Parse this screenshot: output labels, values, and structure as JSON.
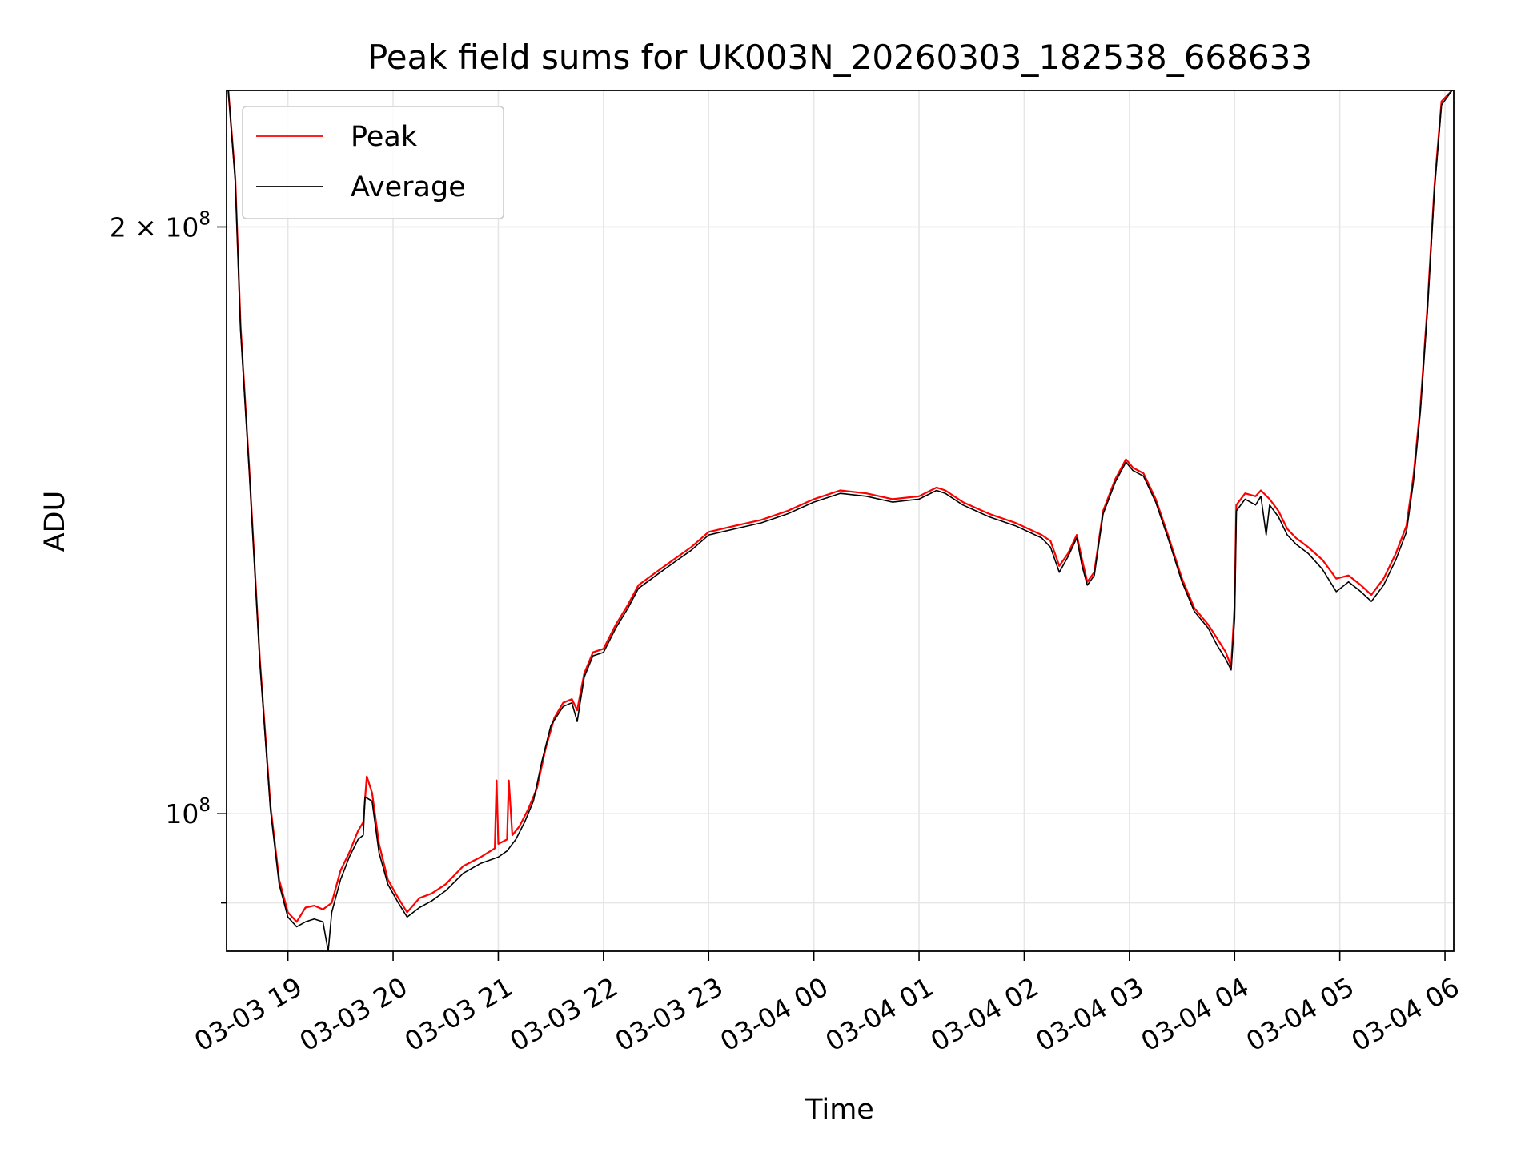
{
  "chart_data": {
    "type": "line",
    "title": "Peak field sums for UK003N_20260303_182538_668633",
    "xlabel": "Time",
    "ylabel": "ADU",
    "y_scale": "log",
    "grid": true,
    "legend_position": "upper-left",
    "x_range": [
      "2026-03-03 18:25",
      "2026-03-04 06:05"
    ],
    "y_range": [
      85000000,
      235000000
    ],
    "x_ticks": [
      {
        "value": "2026-03-03 19:00",
        "label": "03-03 19"
      },
      {
        "value": "2026-03-03 20:00",
        "label": "03-03 20"
      },
      {
        "value": "2026-03-03 21:00",
        "label": "03-03 21"
      },
      {
        "value": "2026-03-03 22:00",
        "label": "03-03 22"
      },
      {
        "value": "2026-03-03 23:00",
        "label": "03-03 23"
      },
      {
        "value": "2026-03-04 00:00",
        "label": "03-04 00"
      },
      {
        "value": "2026-03-04 01:00",
        "label": "03-04 01"
      },
      {
        "value": "2026-03-04 02:00",
        "label": "03-04 02"
      },
      {
        "value": "2026-03-04 03:00",
        "label": "03-04 03"
      },
      {
        "value": "2026-03-04 04:00",
        "label": "03-04 04"
      },
      {
        "value": "2026-03-04 05:00",
        "label": "03-04 05"
      },
      {
        "value": "2026-03-04 06:00",
        "label": "03-04 06"
      }
    ],
    "y_ticks_major": [
      {
        "value": 100000000,
        "base": "10",
        "exp": "8"
      },
      {
        "value": 200000000,
        "base": "2 × 10",
        "exp": "8"
      }
    ],
    "y_ticks_minor": [
      90000000
    ],
    "colors": {
      "peak": "#ff0000",
      "average": "#000000"
    },
    "series": [
      {
        "name": "Peak",
        "color": "#ff0000",
        "points": [
          [
            "2026-03-03 18:26",
            235000000
          ],
          [
            "2026-03-03 18:30",
            212000000
          ],
          [
            "2026-03-03 18:33",
            178000000
          ],
          [
            "2026-03-03 18:38",
            150000000
          ],
          [
            "2026-03-03 18:44",
            120000000
          ],
          [
            "2026-03-03 18:50",
            101000000
          ],
          [
            "2026-03-03 18:55",
            92500000
          ],
          [
            "2026-03-03 19:00",
            89000000
          ],
          [
            "2026-03-03 19:05",
            88000000
          ],
          [
            "2026-03-03 19:10",
            89500000
          ],
          [
            "2026-03-03 19:15",
            89700000
          ],
          [
            "2026-03-03 19:20",
            89300000
          ],
          [
            "2026-03-03 19:25",
            90000000
          ],
          [
            "2026-03-03 19:30",
            93500000
          ],
          [
            "2026-03-03 19:35",
            95500000
          ],
          [
            "2026-03-03 19:40",
            98000000
          ],
          [
            "2026-03-03 19:43",
            99000000
          ],
          [
            "2026-03-03 19:45",
            104500000
          ],
          [
            "2026-03-03 19:48",
            102500000
          ],
          [
            "2026-03-03 19:52",
            96500000
          ],
          [
            "2026-03-03 19:57",
            92500000
          ],
          [
            "2026-03-03 20:03",
            90500000
          ],
          [
            "2026-03-03 20:08",
            89000000
          ],
          [
            "2026-03-03 20:15",
            90500000
          ],
          [
            "2026-03-03 20:22",
            91000000
          ],
          [
            "2026-03-03 20:30",
            92000000
          ],
          [
            "2026-03-03 20:40",
            94000000
          ],
          [
            "2026-03-03 20:50",
            95000000
          ],
          [
            "2026-03-03 20:58",
            96000000
          ],
          [
            "2026-03-03 20:59",
            104000000
          ],
          [
            "2026-03-03 21:00",
            96500000
          ],
          [
            "2026-03-03 21:05",
            97000000
          ],
          [
            "2026-03-03 21:06",
            104000000
          ],
          [
            "2026-03-03 21:08",
            97500000
          ],
          [
            "2026-03-03 21:12",
            98500000
          ],
          [
            "2026-03-03 21:17",
            100500000
          ],
          [
            "2026-03-03 21:22",
            103000000
          ],
          [
            "2026-03-03 21:27",
            108000000
          ],
          [
            "2026-03-03 21:32",
            112000000
          ],
          [
            "2026-03-03 21:37",
            114000000
          ],
          [
            "2026-03-03 21:42",
            114500000
          ],
          [
            "2026-03-03 21:45",
            113000000
          ],
          [
            "2026-03-03 21:49",
            118000000
          ],
          [
            "2026-03-03 21:54",
            121000000
          ],
          [
            "2026-03-03 22:00",
            121500000
          ],
          [
            "2026-03-03 22:07",
            125000000
          ],
          [
            "2026-03-03 22:14",
            128000000
          ],
          [
            "2026-03-03 22:20",
            131000000
          ],
          [
            "2026-03-03 22:30",
            133000000
          ],
          [
            "2026-03-03 22:40",
            135000000
          ],
          [
            "2026-03-03 22:50",
            137000000
          ],
          [
            "2026-03-03 23:00",
            139500000
          ],
          [
            "2026-03-03 23:15",
            140500000
          ],
          [
            "2026-03-03 23:30",
            141500000
          ],
          [
            "2026-03-03 23:45",
            143000000
          ],
          [
            "2026-03-04 00:00",
            145000000
          ],
          [
            "2026-03-04 00:15",
            146500000
          ],
          [
            "2026-03-04 00:30",
            146000000
          ],
          [
            "2026-03-04 00:45",
            145000000
          ],
          [
            "2026-03-04 01:00",
            145500000
          ],
          [
            "2026-03-04 01:10",
            147000000
          ],
          [
            "2026-03-04 01:15",
            146500000
          ],
          [
            "2026-03-04 01:25",
            144500000
          ],
          [
            "2026-03-04 01:40",
            142500000
          ],
          [
            "2026-03-04 01:55",
            141000000
          ],
          [
            "2026-03-04 02:10",
            139000000
          ],
          [
            "2026-03-04 02:15",
            138000000
          ],
          [
            "2026-03-04 02:20",
            134000000
          ],
          [
            "2026-03-04 02:25",
            136000000
          ],
          [
            "2026-03-04 02:30",
            139000000
          ],
          [
            "2026-03-04 02:33",
            135000000
          ],
          [
            "2026-03-04 02:36",
            131500000
          ],
          [
            "2026-03-04 02:40",
            133000000
          ],
          [
            "2026-03-04 02:45",
            143000000
          ],
          [
            "2026-03-04 02:52",
            148500000
          ],
          [
            "2026-03-04 02:58",
            152000000
          ],
          [
            "2026-03-04 03:02",
            150500000
          ],
          [
            "2026-03-04 03:08",
            149500000
          ],
          [
            "2026-03-04 03:15",
            145000000
          ],
          [
            "2026-03-04 03:22",
            139000000
          ],
          [
            "2026-03-04 03:30",
            132000000
          ],
          [
            "2026-03-04 03:37",
            127500000
          ],
          [
            "2026-03-04 03:45",
            125000000
          ],
          [
            "2026-03-04 03:50",
            123000000
          ],
          [
            "2026-03-04 03:55",
            121000000
          ],
          [
            "2026-03-04 03:58",
            119000000
          ],
          [
            "2026-03-04 04:00",
            128000000
          ],
          [
            "2026-03-04 04:01",
            144000000
          ],
          [
            "2026-03-04 04:06",
            146000000
          ],
          [
            "2026-03-04 04:12",
            145500000
          ],
          [
            "2026-03-04 04:15",
            146500000
          ],
          [
            "2026-03-04 04:20",
            145000000
          ],
          [
            "2026-03-04 04:25",
            143000000
          ],
          [
            "2026-03-04 04:30",
            140000000
          ],
          [
            "2026-03-04 04:35",
            138500000
          ],
          [
            "2026-03-04 04:42",
            137000000
          ],
          [
            "2026-03-04 04:50",
            135000000
          ],
          [
            "2026-03-04 04:58",
            132000000
          ],
          [
            "2026-03-04 05:05",
            132500000
          ],
          [
            "2026-03-04 05:12",
            131000000
          ],
          [
            "2026-03-04 05:18",
            129500000
          ],
          [
            "2026-03-04 05:25",
            132000000
          ],
          [
            "2026-03-04 05:32",
            136000000
          ],
          [
            "2026-03-04 05:38",
            140500000
          ],
          [
            "2026-03-04 05:42",
            149000000
          ],
          [
            "2026-03-04 05:46",
            162000000
          ],
          [
            "2026-03-04 05:50",
            182000000
          ],
          [
            "2026-03-04 05:54",
            210000000
          ],
          [
            "2026-03-04 05:58",
            232000000
          ],
          [
            "2026-03-04 06:04",
            235000000
          ]
        ]
      },
      {
        "name": "Average",
        "color": "#000000",
        "points": [
          [
            "2026-03-03 18:26",
            235000000
          ],
          [
            "2026-03-03 18:30",
            211000000
          ],
          [
            "2026-03-03 18:33",
            177000000
          ],
          [
            "2026-03-03 18:38",
            149500000
          ],
          [
            "2026-03-03 18:44",
            119500000
          ],
          [
            "2026-03-03 18:50",
            100500000
          ],
          [
            "2026-03-03 18:55",
            92000000
          ],
          [
            "2026-03-03 19:00",
            88500000
          ],
          [
            "2026-03-03 19:05",
            87500000
          ],
          [
            "2026-03-03 19:10",
            88000000
          ],
          [
            "2026-03-03 19:15",
            88300000
          ],
          [
            "2026-03-03 19:20",
            88000000
          ],
          [
            "2026-03-03 19:23",
            85000000
          ],
          [
            "2026-03-03 19:25",
            89000000
          ],
          [
            "2026-03-03 19:30",
            92500000
          ],
          [
            "2026-03-03 19:35",
            95000000
          ],
          [
            "2026-03-03 19:40",
            97000000
          ],
          [
            "2026-03-03 19:43",
            97500000
          ],
          [
            "2026-03-03 19:44",
            102000000
          ],
          [
            "2026-03-03 19:48",
            101500000
          ],
          [
            "2026-03-03 19:52",
            95500000
          ],
          [
            "2026-03-03 19:57",
            92000000
          ],
          [
            "2026-03-03 20:03",
            90000000
          ],
          [
            "2026-03-03 20:08",
            88500000
          ],
          [
            "2026-03-03 20:15",
            89500000
          ],
          [
            "2026-03-03 20:22",
            90200000
          ],
          [
            "2026-03-03 20:30",
            91300000
          ],
          [
            "2026-03-03 20:40",
            93200000
          ],
          [
            "2026-03-03 20:50",
            94300000
          ],
          [
            "2026-03-03 21:00",
            95000000
          ],
          [
            "2026-03-03 21:05",
            95700000
          ],
          [
            "2026-03-03 21:10",
            97000000
          ],
          [
            "2026-03-03 21:15",
            99000000
          ],
          [
            "2026-03-03 21:20",
            101500000
          ],
          [
            "2026-03-03 21:25",
            106500000
          ],
          [
            "2026-03-03 21:30",
            111000000
          ],
          [
            "2026-03-03 21:37",
            113500000
          ],
          [
            "2026-03-03 21:42",
            114000000
          ],
          [
            "2026-03-03 21:45",
            111500000
          ],
          [
            "2026-03-03 21:49",
            117500000
          ],
          [
            "2026-03-03 21:54",
            120500000
          ],
          [
            "2026-03-03 22:00",
            121000000
          ],
          [
            "2026-03-03 22:07",
            124500000
          ],
          [
            "2026-03-03 22:14",
            127500000
          ],
          [
            "2026-03-03 22:20",
            130500000
          ],
          [
            "2026-03-03 22:30",
            132500000
          ],
          [
            "2026-03-03 22:40",
            134500000
          ],
          [
            "2026-03-03 22:50",
            136500000
          ],
          [
            "2026-03-03 23:00",
            139000000
          ],
          [
            "2026-03-03 23:15",
            140000000
          ],
          [
            "2026-03-03 23:30",
            141000000
          ],
          [
            "2026-03-03 23:45",
            142500000
          ],
          [
            "2026-03-04 00:00",
            144500000
          ],
          [
            "2026-03-04 00:15",
            146000000
          ],
          [
            "2026-03-04 00:30",
            145500000
          ],
          [
            "2026-03-04 00:45",
            144500000
          ],
          [
            "2026-03-04 01:00",
            145000000
          ],
          [
            "2026-03-04 01:10",
            146500000
          ],
          [
            "2026-03-04 01:15",
            146000000
          ],
          [
            "2026-03-04 01:25",
            144000000
          ],
          [
            "2026-03-04 01:40",
            142000000
          ],
          [
            "2026-03-04 01:55",
            140500000
          ],
          [
            "2026-03-04 02:10",
            138500000
          ],
          [
            "2026-03-04 02:15",
            137000000
          ],
          [
            "2026-03-04 02:20",
            133000000
          ],
          [
            "2026-03-04 02:25",
            135500000
          ],
          [
            "2026-03-04 02:30",
            138500000
          ],
          [
            "2026-03-04 02:33",
            134000000
          ],
          [
            "2026-03-04 02:36",
            131000000
          ],
          [
            "2026-03-04 02:40",
            132500000
          ],
          [
            "2026-03-04 02:45",
            142500000
          ],
          [
            "2026-03-04 02:52",
            148000000
          ],
          [
            "2026-03-04 02:58",
            151500000
          ],
          [
            "2026-03-04 03:02",
            150000000
          ],
          [
            "2026-03-04 03:08",
            149000000
          ],
          [
            "2026-03-04 03:15",
            144500000
          ],
          [
            "2026-03-04 03:22",
            138500000
          ],
          [
            "2026-03-04 03:30",
            131500000
          ],
          [
            "2026-03-04 03:37",
            127000000
          ],
          [
            "2026-03-04 03:45",
            124500000
          ],
          [
            "2026-03-04 03:50",
            122000000
          ],
          [
            "2026-03-04 03:55",
            120000000
          ],
          [
            "2026-03-04 03:58",
            118500000
          ],
          [
            "2026-03-04 04:00",
            126000000
          ],
          [
            "2026-03-04 04:01",
            143000000
          ],
          [
            "2026-03-04 04:06",
            145000000
          ],
          [
            "2026-03-04 04:12",
            144000000
          ],
          [
            "2026-03-04 04:15",
            145500000
          ],
          [
            "2026-03-04 04:18",
            139000000
          ],
          [
            "2026-03-04 04:20",
            144000000
          ],
          [
            "2026-03-04 04:25",
            142000000
          ],
          [
            "2026-03-04 04:30",
            139000000
          ],
          [
            "2026-03-04 04:35",
            137500000
          ],
          [
            "2026-03-04 04:42",
            136000000
          ],
          [
            "2026-03-04 04:50",
            133500000
          ],
          [
            "2026-03-04 04:58",
            130000000
          ],
          [
            "2026-03-04 05:05",
            131500000
          ],
          [
            "2026-03-04 05:12",
            130000000
          ],
          [
            "2026-03-04 05:18",
            128500000
          ],
          [
            "2026-03-04 05:25",
            131000000
          ],
          [
            "2026-03-04 05:32",
            135000000
          ],
          [
            "2026-03-04 05:38",
            139500000
          ],
          [
            "2026-03-04 05:42",
            148000000
          ],
          [
            "2026-03-04 05:46",
            161000000
          ],
          [
            "2026-03-04 05:50",
            181000000
          ],
          [
            "2026-03-04 05:54",
            209000000
          ],
          [
            "2026-03-04 05:58",
            231000000
          ],
          [
            "2026-03-04 06:04",
            235000000
          ]
        ]
      }
    ]
  }
}
